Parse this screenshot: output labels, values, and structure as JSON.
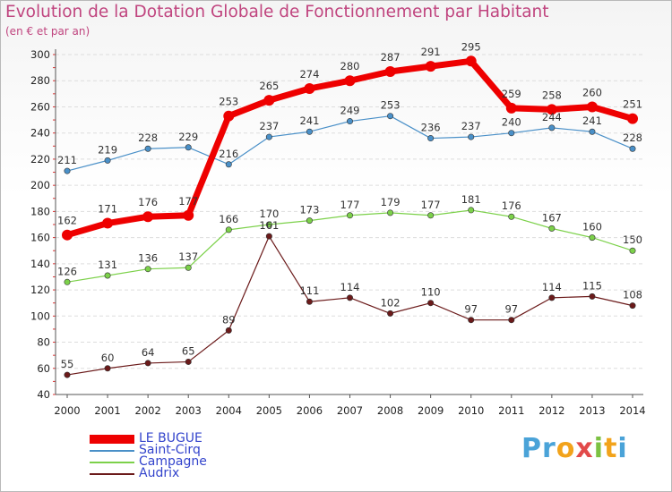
{
  "header": {
    "title": "Evolution de la Dotation Globale de Fonctionnement par Habitant",
    "subtitle": "(en € et par an)"
  },
  "logo": {
    "letters": [
      {
        "ch": "P",
        "color": "#4aa3d8"
      },
      {
        "ch": "r",
        "color": "#4aa3d8"
      },
      {
        "ch": "o",
        "color": "#f2a31b"
      },
      {
        "ch": "x",
        "color": "#e24a4a"
      },
      {
        "ch": "i",
        "color": "#7cc142"
      },
      {
        "ch": "t",
        "color": "#f2a31b"
      },
      {
        "ch": "i",
        "color": "#4aa3d8"
      }
    ]
  },
  "chart_data": {
    "type": "line",
    "title": "Evolution de la Dotation Globale de Fonctionnement par Habitant",
    "subtitle": "(en € et par an)",
    "x": [
      2000,
      2001,
      2002,
      2003,
      2004,
      2005,
      2006,
      2007,
      2008,
      2009,
      2010,
      2011,
      2012,
      2013,
      2014
    ],
    "ylim": [
      40,
      300
    ],
    "yticks": [
      40,
      60,
      80,
      100,
      120,
      140,
      160,
      180,
      200,
      220,
      240,
      260,
      280,
      300
    ],
    "grid": "horizontal dashed",
    "legend_position": "bottom-left",
    "series": [
      {
        "name": "LE BUGUE",
        "color": "#ee0000",
        "values": [
          162,
          171,
          176,
          177,
          253,
          265,
          274,
          280,
          287,
          291,
          295,
          259,
          258,
          260,
          251
        ],
        "labels": [
          "162",
          "171",
          "176",
          "177",
          "253",
          "265",
          "274",
          "280",
          "287",
          "291",
          "295",
          "259",
          "258",
          "260",
          "251"
        ]
      },
      {
        "name": "Saint-Cirq",
        "color": "#4a90c8",
        "values": [
          211,
          219,
          228,
          229,
          216,
          237,
          241,
          249,
          253,
          236,
          237,
          240,
          244,
          241,
          228
        ],
        "labels": [
          "211",
          "219",
          "228",
          "229",
          "216",
          "237",
          "241",
          "249",
          "253",
          "236",
          "237",
          "240",
          "244",
          "241",
          "228"
        ]
      },
      {
        "name": "Campagne",
        "color": "#7cd14a",
        "values": [
          126,
          131,
          136,
          137,
          166,
          170,
          173,
          177,
          179,
          177,
          181,
          176,
          167,
          160,
          150
        ],
        "labels": [
          "126",
          "131",
          "136",
          "137",
          "166",
          "170",
          "173",
          "177",
          "179",
          "177",
          "181",
          "176",
          "167",
          "160",
          "150"
        ]
      },
      {
        "name": "Audrix",
        "color": "#6b1a1a",
        "values": [
          55,
          60,
          64,
          65,
          89,
          161,
          111,
          114,
          102,
          110,
          97,
          97,
          114,
          115,
          108
        ],
        "labels": [
          "55",
          "60",
          "64",
          "65",
          "89",
          "161",
          "111",
          "114",
          "102",
          "110",
          "97",
          "97",
          "114",
          "115",
          "108"
        ]
      }
    ]
  }
}
